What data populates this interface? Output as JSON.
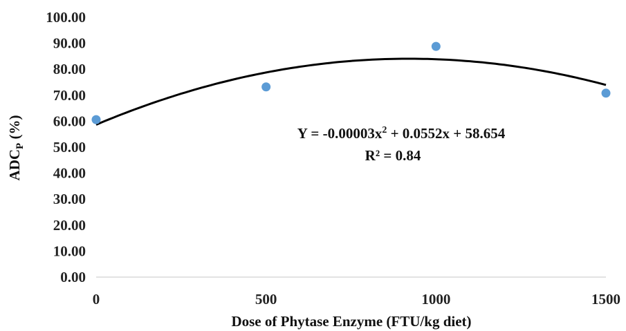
{
  "chart_data": {
    "type": "scatter",
    "xlabel": "Dose of Phytase Enzyme (FTU/kg diet)",
    "ylabel": {
      "main": "ADC",
      "sub": "P",
      "suffix": " (%)"
    },
    "xlim": [
      0,
      1500
    ],
    "ylim": [
      0,
      100
    ],
    "x_ticks": [
      "0",
      "500",
      "1000",
      "1500"
    ],
    "y_ticks": [
      "0.00",
      "10.00",
      "20.00",
      "30.00",
      "40.00",
      "50.00",
      "60.00",
      "70.00",
      "80.00",
      "90.00",
      "100.00"
    ],
    "grid": false,
    "series": [
      {
        "x": [
          0,
          500,
          1000,
          1500
        ],
        "y": [
          60.6,
          73.2,
          88.8,
          70.8
        ],
        "color": "#5b9bd5"
      }
    ],
    "trendline": {
      "type": "polynomial",
      "coefficients": {
        "a": -3e-05,
        "b": 0.0552,
        "c": 58.654
      },
      "color": "#000000"
    },
    "annotations": {
      "equation": {
        "prefix": "Y = -0.00003x",
        "exp": "2",
        "suffix": " + 0.0552x + 58.654"
      },
      "r2": "R² = 0.84"
    }
  }
}
